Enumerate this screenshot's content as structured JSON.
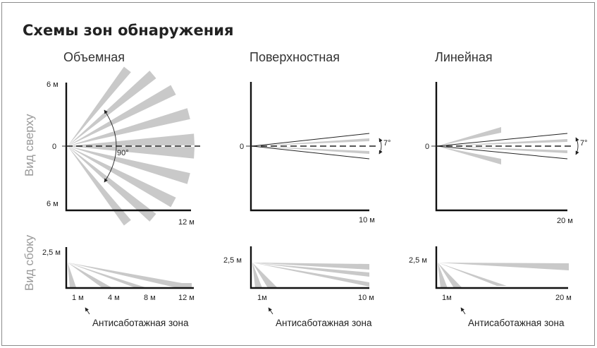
{
  "title": "Схемы зон обнаружения",
  "columns": [
    "Объемная",
    "Поверхностная",
    "Линейная"
  ],
  "rows": {
    "top": "Вид сверху",
    "side": "Вид сбоку"
  },
  "volumetric": {
    "top_y_up": "6 м",
    "top_zero": "0",
    "top_y_down": "6 м",
    "top_x_end": "12 м",
    "angle": "90°",
    "side_height": "2,5 м",
    "side_ticks": [
      "1 м",
      "4 м",
      "8 м",
      "12 м"
    ]
  },
  "surface": {
    "top_zero": "0",
    "top_x_end": "10 м",
    "angle": "7°",
    "side_height": "2,5 м",
    "side_ticks": [
      "1м",
      "10 м"
    ]
  },
  "linear": {
    "top_zero": "0",
    "top_x_end": "20 м",
    "angle": "7°",
    "side_height": "2,5 м",
    "side_ticks": [
      "1м",
      "20 м"
    ]
  },
  "antisabotage": "Антисаботажная зона"
}
